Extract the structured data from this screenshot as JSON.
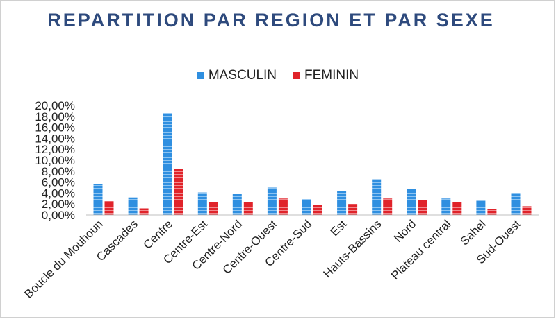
{
  "chart_data": {
    "type": "bar",
    "title": "REPARTITION PAR REGION ET PAR SEXE",
    "xlabel": "",
    "ylabel": "",
    "ylim": [
      0,
      20
    ],
    "y_ticks": [
      "0,00%",
      "2,00%",
      "4,00%",
      "6,00%",
      "8,00%",
      "10,00%",
      "12,00%",
      "14,00%",
      "16,00%",
      "18,00%",
      "20,00%"
    ],
    "legend_position": "top",
    "grid": false,
    "categories": [
      "Boucle du Mouhoun",
      "Cascades",
      "Centre",
      "Centre-Est",
      "Centre-Nord",
      "Centre-Ouest",
      "Centre-Sud",
      "Est",
      "Hauts-Bassins",
      "Nord",
      "Plateau central",
      "Sahel",
      "Sud-Ouest"
    ],
    "series": [
      {
        "name": "MASCULIN",
        "color": "#2f8fe0",
        "values": [
          5.6,
          3.2,
          18.6,
          4.1,
          3.8,
          5.0,
          2.9,
          4.3,
          6.5,
          4.7,
          3.0,
          2.6,
          4.0
        ]
      },
      {
        "name": "FEMININ",
        "color": "#e0232a",
        "values": [
          2.5,
          1.2,
          8.4,
          2.4,
          2.3,
          3.0,
          1.8,
          2.0,
          3.0,
          2.7,
          2.3,
          1.1,
          1.6
        ]
      }
    ]
  }
}
